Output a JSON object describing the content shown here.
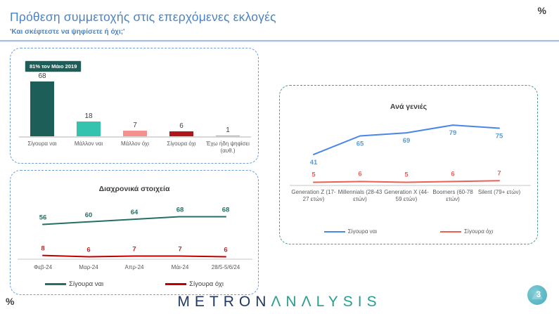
{
  "page": {
    "title": "Πρόθεση συμμετοχής στις επερχόμενες εκλογές",
    "subtitle": "'Και σκέφτεστε να ψηφίσετε ή όχι;'",
    "percent_symbol": "%",
    "page_number": "3",
    "logo_part1": "METRON",
    "logo_part2": "ΛΝΛLYSIS"
  },
  "colors": {
    "title_blue": "#4a84c4",
    "panel_border_blue": "#6f9dd6",
    "panel_border_teal": "#4e9a90",
    "dark_teal": "#1d5f58",
    "turquoise": "#33c3ae",
    "salmon": "#f5908c",
    "dark_red": "#b2161b",
    "timeline_green": "#256f66",
    "timeline_red": "#c00000",
    "generations_blue": "#4a86e8",
    "generations_red": "#ed5f55",
    "axis_gray": "#d9d9d9",
    "label_gray": "#595959"
  },
  "chart_data": [
    {
      "id": "bars",
      "type": "bar",
      "badge": "81% τον Μάιο 2019",
      "categories": [
        "Σίγουρα ναι",
        "Μάλλον ναι",
        "Μάλλον όχι",
        "Σίγουρα όχι",
        "Έχω ήδη ψηφίσει (αυθ.)"
      ],
      "values": [
        68,
        18,
        7,
        6,
        1
      ],
      "bar_colors": [
        "#1d5f58",
        "#33c3ae",
        "#f5908c",
        "#b2161b",
        "#a6a6a6"
      ],
      "ylim": [
        0,
        80
      ],
      "grid": false
    },
    {
      "id": "timeline",
      "type": "line",
      "title": "Διαχρονικά στοιχεία",
      "categories": [
        "Φεβ-24",
        "Μαρ-24",
        "Απρ-24",
        "Μάι-24",
        "28/5-5/6/24"
      ],
      "series": [
        {
          "name": "Σίγουρα ναι",
          "values": [
            56,
            60,
            64,
            68,
            68
          ],
          "color": "#256f66",
          "label_color": "#256f66",
          "labels_below": false
        },
        {
          "name": "Σίγουρα όχι",
          "values": [
            8,
            6,
            7,
            7,
            6
          ],
          "color": "#c00000",
          "label_color": "#c0262c",
          "labels_below": false
        }
      ],
      "ylim": [
        0,
        80
      ],
      "grid": false,
      "legend_position": "bottom"
    },
    {
      "id": "generations",
      "type": "line",
      "title": "Ανά γενιές",
      "categories": [
        "Generation Z (17-27 ετών)",
        "Millennials (28-43 ετών)",
        "Generation X (44-59 ετών)",
        "Boomers (60-78 ετών)",
        "Silent (79+ ετών)"
      ],
      "categories_wrapped": [
        [
          "Generation Z (17-",
          "27 ετών)"
        ],
        [
          "Millennials (28-43",
          "ετών)"
        ],
        [
          "Generation X (44-",
          "59 ετών)"
        ],
        [
          "Boomers (60-78",
          "ετών)"
        ],
        [
          "Silent (79+ ετών)"
        ]
      ],
      "series": [
        {
          "name": "Σίγουρα ναι",
          "values": [
            41,
            65,
            69,
            79,
            75
          ],
          "color": "#4a86e8",
          "label_color": "#5b9bd5",
          "labels_below": true
        },
        {
          "name": "Σίγουρα όχι",
          "values": [
            5,
            6,
            5,
            6,
            7
          ],
          "color": "#ed5f55",
          "label_color": "#ed5f55",
          "labels_below": false
        }
      ],
      "ylim": [
        0,
        90
      ],
      "grid": false,
      "legend_position": "bottom"
    }
  ]
}
